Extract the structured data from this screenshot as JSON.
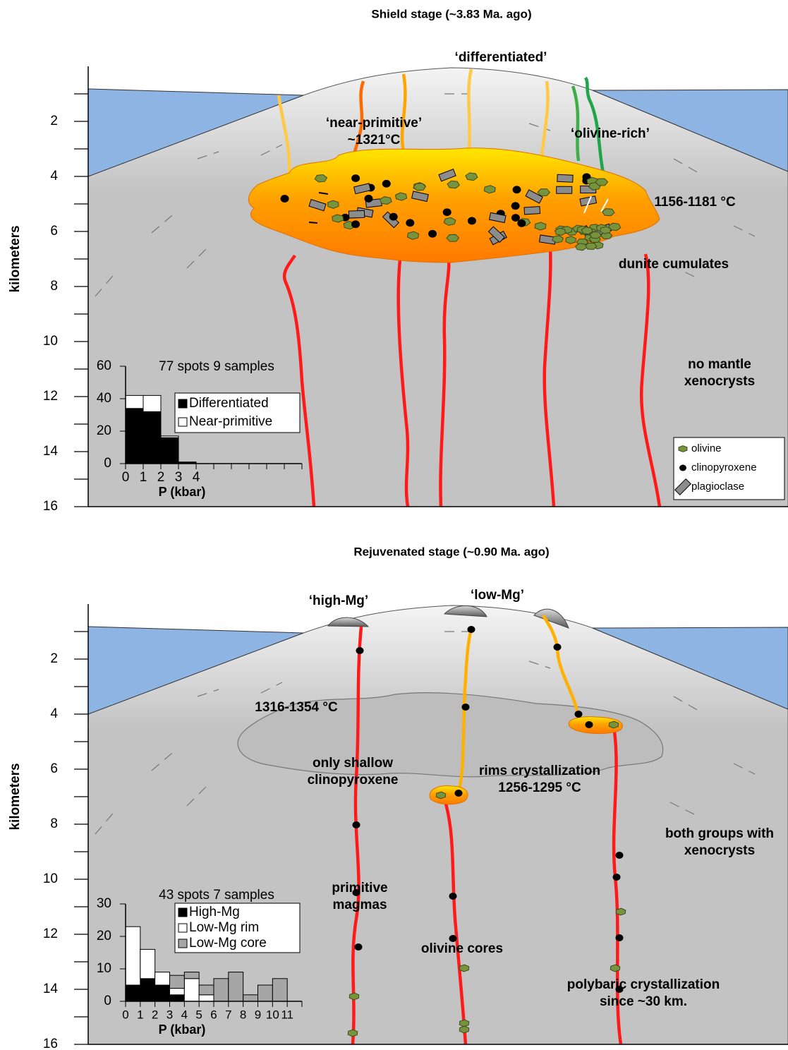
{
  "panels": [
    {
      "title": "Shield stage (~3.83 Ma. ago)",
      "y_axis_label": "kilometers",
      "ylim": [
        0,
        16
      ],
      "yticks": [
        2,
        4,
        6,
        8,
        10,
        12,
        14,
        16
      ],
      "minor_yticks": [
        1,
        3,
        5,
        7,
        9,
        11,
        13,
        15
      ],
      "annotations": [
        [
          "‘differentiated’"
        ],
        [
          "‘near-primitive’",
          "~1321°C"
        ],
        [
          "‘olivine-rich’"
        ],
        [
          "1156-1181 °C"
        ],
        [
          "dunite cumulates"
        ],
        [
          "no mantle",
          "xenocrysts"
        ]
      ],
      "mineral_legend": [
        "olivine",
        "clinopyroxene",
        "plagioclase"
      ],
      "histogram": {
        "type": "bar",
        "title": "77 spots 9 samples",
        "x_label": "P (kbar)",
        "xlim": [
          0,
          10
        ],
        "xticks": [
          0,
          1,
          2,
          3,
          4
        ],
        "minor_xticks": [
          5,
          6,
          7,
          8,
          9,
          10
        ],
        "ylim": [
          0,
          60
        ],
        "yticks": [
          0,
          20,
          40,
          60
        ],
        "bins": [
          0,
          1,
          2,
          3,
          4
        ],
        "series": [
          {
            "name": "Differentiated",
            "color": "#000000",
            "values": [
              34,
              32,
              16,
              1
            ]
          },
          {
            "name": "Near-primitive",
            "color": "#ffffff",
            "values": [
              8,
              10,
              1,
              0
            ]
          }
        ]
      }
    },
    {
      "title": "Rejuvenated stage (~0.90 Ma. ago)",
      "y_axis_label": "kilometers",
      "ylim": [
        0,
        16
      ],
      "yticks": [
        2,
        4,
        6,
        8,
        10,
        12,
        14,
        16
      ],
      "minor_yticks": [
        1,
        3,
        5,
        7,
        9,
        11,
        13,
        15
      ],
      "annotations": [
        [
          "‘high-Mg’"
        ],
        [
          "‘low-Mg’"
        ],
        [
          "1316-1354 °C"
        ],
        [
          "only shallow",
          "clinopyroxene"
        ],
        [
          "rims crystallization",
          "1256-1295 °C"
        ],
        [
          "both groups with",
          "xenocrysts"
        ],
        [
          "primitive",
          "magmas"
        ],
        [
          "olivine cores"
        ],
        [
          "polybaric crystallization",
          "since ~30 km."
        ]
      ],
      "histogram": {
        "type": "bar",
        "title": "43 spots 7 samples",
        "x_label": "P (kbar)",
        "xlim": [
          0,
          12
        ],
        "xticks": [
          0,
          1,
          2,
          3,
          4,
          5,
          6,
          7,
          8,
          9,
          10,
          11
        ],
        "minor_xticks": [
          12
        ],
        "ylim": [
          0,
          30
        ],
        "yticks": [
          0,
          10,
          20,
          30
        ],
        "bins": [
          0,
          1,
          2,
          3,
          4,
          5,
          6,
          7,
          8,
          9,
          10,
          11
        ],
        "series": [
          {
            "name": "High-Mg",
            "color": "#000000",
            "values": [
              5,
              7,
              5,
              2,
              0,
              0,
              0,
              0,
              0,
              0,
              0
            ]
          },
          {
            "name": "Low-Mg rim",
            "color": "#ffffff",
            "values": [
              18,
              9,
              4,
              2,
              7,
              2,
              0,
              0,
              0,
              0,
              0
            ]
          },
          {
            "name": "Low-Mg core",
            "color": "#a6a6a6",
            "values": [
              0,
              0,
              0,
              4,
              2,
              3,
              7,
              9,
              2,
              5,
              7
            ]
          }
        ]
      }
    }
  ]
}
